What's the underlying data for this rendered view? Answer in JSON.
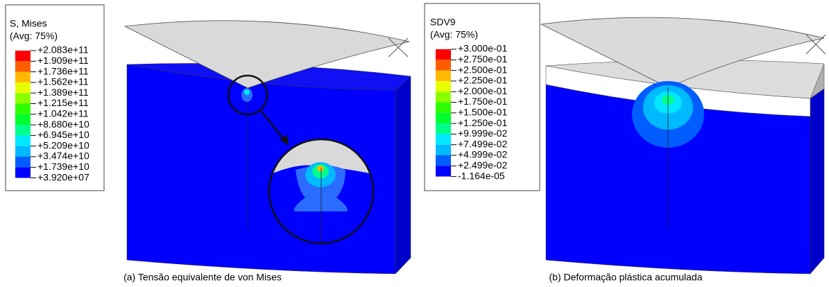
{
  "panels": [
    {
      "legend_title": "S, Mises",
      "legend_subtitle": "(Avg: 75%)",
      "legend_labels": [
        "+2.083e+11",
        "+1.909e+11",
        "+1.736e+11",
        "+1.562e+11",
        "+1.389e+11",
        "+1.215e+11",
        "+1.042e+11",
        "+8.680e+10",
        "+6.945e+10",
        "+5.209e+10",
        "+3.474e+10",
        "+1.739e+10",
        "+3.920e+07"
      ],
      "caption": "(a) Tensão equivalente de von Mises"
    },
    {
      "legend_title": "SDV9",
      "legend_subtitle": "(Avg: 75%)",
      "legend_labels": [
        "+3.000e-01",
        "+2.750e-01",
        "+2.500e-01",
        "+2.250e-01",
        "+2.000e-01",
        "+1.750e-01",
        "+1.500e-01",
        "+1.250e-01",
        "+9.999e-02",
        "+7.499e-02",
        "+4.999e-02",
        "+2.499e-02",
        "-1.164e-05"
      ],
      "caption": "(b) Deformação plástica acumulada"
    }
  ],
  "legend_colors": [
    "#ff0000",
    "#ff5d00",
    "#ffb900",
    "#e8ff00",
    "#8bff00",
    "#2eff00",
    "#00ff2e",
    "#00ff8b",
    "#00e8ff",
    "#00b9ff",
    "#005dff",
    "#0000ff"
  ]
}
